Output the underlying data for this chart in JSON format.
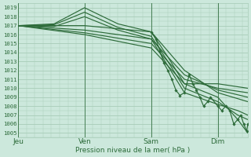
{
  "bg_color": "#cce8dc",
  "grid_color": "#a8ccb8",
  "line_color": "#2d6b3a",
  "ylim": [
    1004.5,
    1019.5
  ],
  "yticks": [
    1005,
    1006,
    1007,
    1008,
    1009,
    1010,
    1011,
    1012,
    1013,
    1014,
    1015,
    1016,
    1017,
    1018,
    1019
  ],
  "xlabel": "Pression niveau de la mer( hPa )",
  "day_labels": [
    "Jeu",
    "Ven",
    "Sam",
    "Dim"
  ],
  "day_positions": [
    0.0,
    0.333,
    0.667,
    1.0
  ],
  "xlim": [
    0.0,
    1.15
  ],
  "lines": [
    [
      [
        0.0,
        1017.0
      ],
      [
        0.18,
        1017.2
      ],
      [
        0.333,
        1019.0
      ],
      [
        0.5,
        1017.2
      ],
      [
        0.667,
        1016.3
      ],
      [
        0.75,
        1013.5
      ],
      [
        0.833,
        1010.5
      ],
      [
        1.0,
        1009.0
      ],
      [
        1.1,
        1006.5
      ],
      [
        1.15,
        1005.0
      ]
    ],
    [
      [
        0.0,
        1017.0
      ],
      [
        0.18,
        1017.1
      ],
      [
        0.333,
        1018.5
      ],
      [
        0.5,
        1016.8
      ],
      [
        0.667,
        1015.8
      ],
      [
        0.75,
        1013.0
      ],
      [
        0.833,
        1010.0
      ],
      [
        1.0,
        1008.5
      ],
      [
        1.1,
        1007.0
      ],
      [
        1.15,
        1006.5
      ]
    ],
    [
      [
        0.0,
        1017.0
      ],
      [
        0.18,
        1016.9
      ],
      [
        0.333,
        1018.0
      ],
      [
        0.5,
        1016.5
      ],
      [
        0.667,
        1015.5
      ],
      [
        0.75,
        1012.5
      ],
      [
        0.833,
        1009.5
      ],
      [
        1.0,
        1008.2
      ],
      [
        1.1,
        1007.5
      ],
      [
        1.15,
        1007.0
      ]
    ],
    [
      [
        0.0,
        1017.0
      ],
      [
        0.333,
        1017.0
      ],
      [
        0.667,
        1016.3
      ],
      [
        0.833,
        1012.0
      ],
      [
        1.0,
        1009.5
      ],
      [
        1.15,
        1008.5
      ]
    ],
    [
      [
        0.0,
        1017.0
      ],
      [
        0.333,
        1016.5
      ],
      [
        0.667,
        1015.5
      ],
      [
        0.833,
        1011.5
      ],
      [
        1.0,
        1009.8
      ],
      [
        1.15,
        1009.0
      ]
    ],
    [
      [
        0.0,
        1017.0
      ],
      [
        0.333,
        1016.2
      ],
      [
        0.667,
        1015.0
      ],
      [
        0.833,
        1011.0
      ],
      [
        1.0,
        1010.0
      ],
      [
        1.15,
        1009.5
      ]
    ],
    [
      [
        0.0,
        1017.0
      ],
      [
        0.333,
        1016.0
      ],
      [
        0.667,
        1014.5
      ],
      [
        0.833,
        1010.5
      ],
      [
        1.0,
        1010.5
      ],
      [
        1.15,
        1010.0
      ]
    ]
  ],
  "marker_line": [
    [
      0.667,
      1016.3
    ],
    [
      0.69,
      1015.5
    ],
    [
      0.71,
      1014.2
    ],
    [
      0.73,
      1012.8
    ],
    [
      0.75,
      1012.0
    ],
    [
      0.77,
      1011.0
    ],
    [
      0.79,
      1009.8
    ],
    [
      0.81,
      1009.2
    ],
    [
      0.833,
      1009.5
    ],
    [
      0.857,
      1011.5
    ],
    [
      0.875,
      1010.5
    ],
    [
      0.893,
      1009.8
    ],
    [
      0.91,
      1009.0
    ],
    [
      0.929,
      1008.0
    ],
    [
      0.95,
      1008.5
    ],
    [
      0.964,
      1009.0
    ],
    [
      1.0,
      1008.0
    ],
    [
      1.02,
      1007.5
    ],
    [
      1.04,
      1008.0
    ],
    [
      1.06,
      1007.5
    ],
    [
      1.08,
      1006.0
    ],
    [
      1.1,
      1006.5
    ],
    [
      1.115,
      1007.0
    ],
    [
      1.13,
      1006.0
    ],
    [
      1.145,
      1005.2
    ],
    [
      1.15,
      1006.0
    ]
  ]
}
